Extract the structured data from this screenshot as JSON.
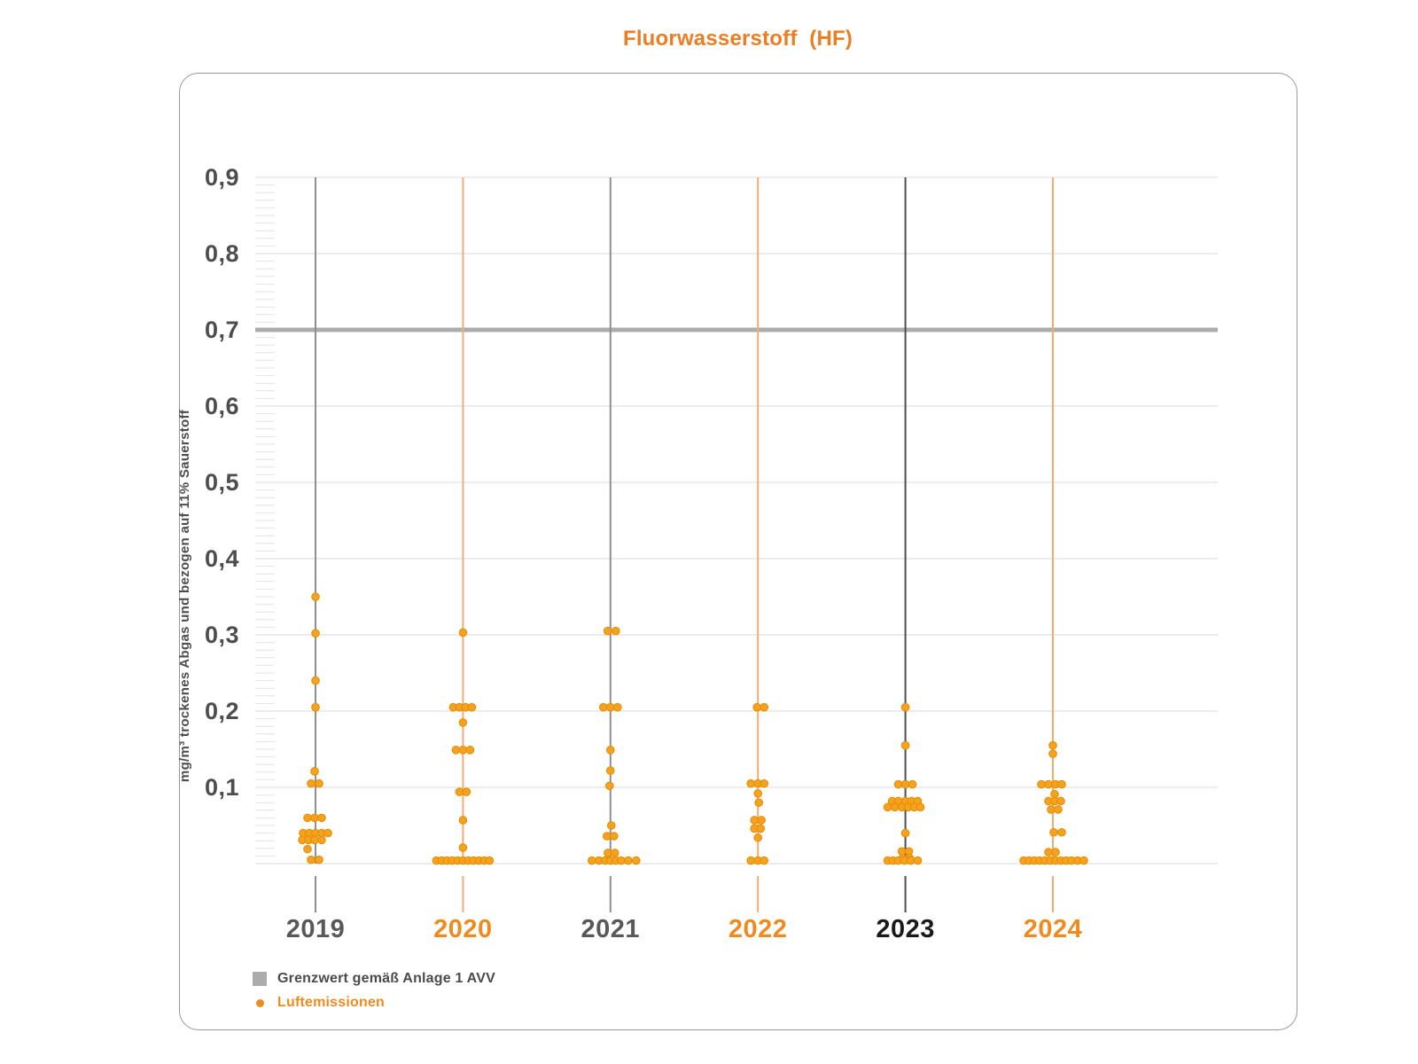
{
  "title": "Fluorwasserstoff  (HF)",
  "y_axis": {
    "label": "mg/m³ trockenes Abgas und bezogen auf 11% Sauerstoff",
    "tick_labels": [
      "0,9",
      "0,8",
      "0,7",
      "0,6",
      "0,5",
      "0,4",
      "0,3",
      "0,2",
      "0,1"
    ],
    "tick_values": [
      0.9,
      0.8,
      0.7,
      0.6,
      0.5,
      0.4,
      0.3,
      0.2,
      0.1
    ]
  },
  "legend": {
    "limit_label": "Grenzwert gemäß Anlage 1 AVV",
    "emissions_label": "Luftemissionen"
  },
  "colors": {
    "title": "#ED7D23",
    "axis_text": "#4D4D4F",
    "grid": "#D9D9D9",
    "minor_tick": "#E4E4E4",
    "limit_line": "#ACACAC",
    "dot_fill": "#F6A21E",
    "dot_stroke": "#E28C00",
    "year_label": [
      "#58585A",
      "#F08A1D",
      "#58585A",
      "#F08A1D",
      "#1A1A1A",
      "#F08A1D"
    ],
    "year_line": [
      "#8F8F8F",
      "#F3AC6E",
      "#8F8F8F",
      "#F3AC6E",
      "#4D4D4D",
      "#F3AC6E"
    ],
    "legend_text": "#4A4A4A",
    "legend_orange": "#F08A1D",
    "card_border": "#979797"
  },
  "chart_data": {
    "type": "scatter",
    "title": "Fluorwasserstoff (HF)",
    "ylabel": "mg/m³ trockenes Abgas und bezogen auf 11% Sauerstoff",
    "ylim": [
      0,
      0.9
    ],
    "y_major_step": 0.1,
    "y_minor_step": 0.01,
    "grid": true,
    "limit_value": 0.7,
    "limit_name": "Grenzwert gemäß Anlage 1 AVV",
    "series_name": "Luftemissionen",
    "legend_position": "bottom-left",
    "categories": [
      "2019",
      "2020",
      "2021",
      "2022",
      "2023",
      "2024"
    ],
    "series": [
      {
        "name": "2019",
        "points": [
          [
            0,
            0.35
          ],
          [
            0,
            0.302
          ],
          [
            0,
            0.24
          ],
          [
            0,
            0.205
          ],
          [
            -1,
            0.121
          ],
          [
            -5,
            0.105
          ],
          [
            4,
            0.105
          ],
          [
            -9,
            0.06
          ],
          [
            -1,
            0.06
          ],
          [
            7,
            0.06
          ],
          [
            -14,
            0.04
          ],
          [
            -7,
            0.04
          ],
          [
            0,
            0.04
          ],
          [
            7,
            0.04
          ],
          [
            14,
            0.04
          ],
          [
            -15,
            0.031
          ],
          [
            -8,
            0.031
          ],
          [
            -1,
            0.031
          ],
          [
            7,
            0.031
          ],
          [
            -9,
            0.019
          ],
          [
            -5,
            0.005
          ],
          [
            4,
            0.005
          ]
        ]
      },
      {
        "name": "2020",
        "points": [
          [
            0,
            0.303
          ],
          [
            -11,
            0.205
          ],
          [
            -4,
            0.205
          ],
          [
            3,
            0.205
          ],
          [
            10,
            0.205
          ],
          [
            0,
            0.185
          ],
          [
            -8,
            0.149
          ],
          [
            0,
            0.149
          ],
          [
            8,
            0.149
          ],
          [
            -4,
            0.094
          ],
          [
            4,
            0.094
          ],
          [
            0,
            0.057
          ],
          [
            0,
            0.021
          ],
          [
            -30,
            0.004
          ],
          [
            -24,
            0.004
          ],
          [
            -18,
            0.004
          ],
          [
            -12,
            0.004
          ],
          [
            -6,
            0.004
          ],
          [
            0,
            0.004
          ],
          [
            6,
            0.004
          ],
          [
            12,
            0.004
          ],
          [
            18,
            0.004
          ],
          [
            24,
            0.004
          ],
          [
            30,
            0.004
          ]
        ]
      },
      {
        "name": "2021",
        "points": [
          [
            -3,
            0.305
          ],
          [
            6,
            0.305
          ],
          [
            -8,
            0.205
          ],
          [
            0,
            0.205
          ],
          [
            8,
            0.205
          ],
          [
            0,
            0.149
          ],
          [
            0,
            0.122
          ],
          [
            -1,
            0.102
          ],
          [
            1,
            0.05
          ],
          [
            -4,
            0.036
          ],
          [
            4,
            0.036
          ],
          [
            -3,
            0.014
          ],
          [
            5,
            0.014
          ],
          [
            -21,
            0.004
          ],
          [
            -13,
            0.004
          ],
          [
            -6,
            0.004
          ],
          [
            0,
            0.004
          ],
          [
            6,
            0.004
          ],
          [
            12,
            0.004
          ],
          [
            20,
            0.004
          ],
          [
            29,
            0.004
          ]
        ]
      },
      {
        "name": "2022",
        "points": [
          [
            -1,
            0.205
          ],
          [
            7,
            0.205
          ],
          [
            -8,
            0.105
          ],
          [
            0,
            0.105
          ],
          [
            7,
            0.105
          ],
          [
            0,
            0.092
          ],
          [
            1,
            0.08
          ],
          [
            -4,
            0.057
          ],
          [
            4,
            0.057
          ],
          [
            -4,
            0.046
          ],
          [
            3,
            0.046
          ],
          [
            0,
            0.034
          ],
          [
            -8,
            0.004
          ],
          [
            0,
            0.004
          ],
          [
            7,
            0.004
          ]
        ]
      },
      {
        "name": "2023",
        "points": [
          [
            0,
            0.205
          ],
          [
            0,
            0.155
          ],
          [
            -8,
            0.104
          ],
          [
            0,
            0.104
          ],
          [
            8,
            0.104
          ],
          [
            -15,
            0.082
          ],
          [
            -8,
            0.082
          ],
          [
            0,
            0.082
          ],
          [
            7,
            0.082
          ],
          [
            14,
            0.082
          ],
          [
            -20,
            0.074
          ],
          [
            -12,
            0.074
          ],
          [
            -4,
            0.074
          ],
          [
            3,
            0.074
          ],
          [
            10,
            0.074
          ],
          [
            17,
            0.074
          ],
          [
            0,
            0.04
          ],
          [
            -4,
            0.016
          ],
          [
            4,
            0.016
          ],
          [
            -3,
            0.007
          ],
          [
            5,
            0.007
          ],
          [
            -20,
            0.004
          ],
          [
            -14,
            0.004
          ],
          [
            -8,
            0.004
          ],
          [
            -1,
            0.004
          ],
          [
            6,
            0.004
          ],
          [
            14,
            0.004
          ]
        ]
      },
      {
        "name": "2024",
        "points": [
          [
            0,
            0.155
          ],
          [
            0,
            0.144
          ],
          [
            -13,
            0.104
          ],
          [
            -5,
            0.104
          ],
          [
            3,
            0.104
          ],
          [
            10,
            0.104
          ],
          [
            2,
            0.091
          ],
          [
            -5,
            0.082
          ],
          [
            2,
            0.082
          ],
          [
            9,
            0.082
          ],
          [
            -2,
            0.071
          ],
          [
            6,
            0.071
          ],
          [
            1,
            0.041
          ],
          [
            10,
            0.041
          ],
          [
            -5,
            0.015
          ],
          [
            3,
            0.015
          ],
          [
            -33,
            0.004
          ],
          [
            -27,
            0.004
          ],
          [
            -21,
            0.004
          ],
          [
            -15,
            0.004
          ],
          [
            -9,
            0.004
          ],
          [
            -3,
            0.004
          ],
          [
            3,
            0.004
          ],
          [
            9,
            0.004
          ],
          [
            15,
            0.004
          ],
          [
            21,
            0.004
          ],
          [
            28,
            0.004
          ],
          [
            35,
            0.004
          ]
        ]
      }
    ]
  }
}
